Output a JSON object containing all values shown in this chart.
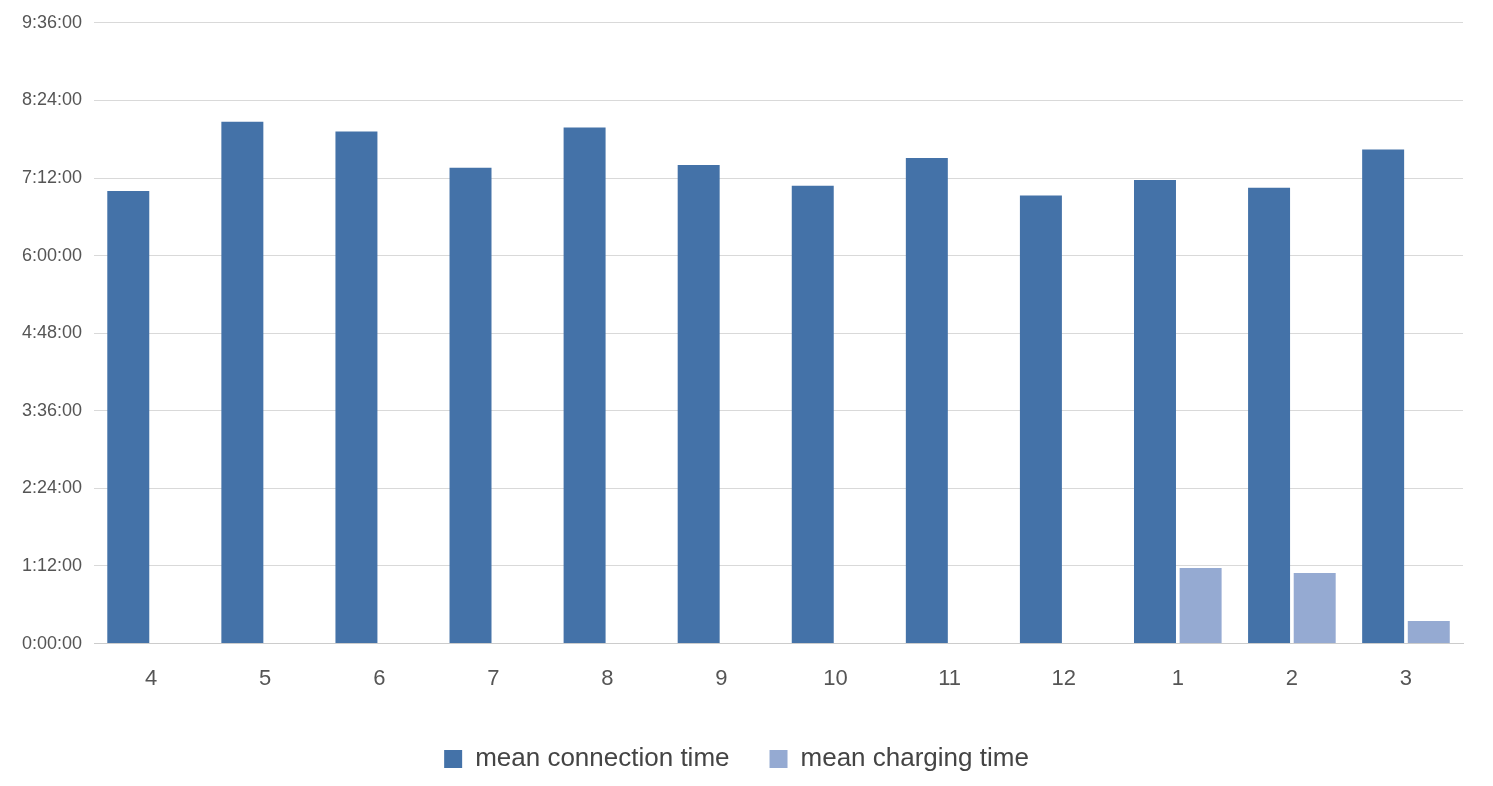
{
  "chart_data": {
    "type": "bar",
    "categories": [
      "4",
      "5",
      "6",
      "7",
      "8",
      "9",
      "10",
      "11",
      "12",
      "1",
      "2",
      "3"
    ],
    "series": [
      {
        "name": "mean connection time",
        "color": "#4472a8",
        "values": [
          7.0,
          8.07,
          7.92,
          7.36,
          7.98,
          7.4,
          7.08,
          7.51,
          6.93,
          7.17,
          7.05,
          7.64
        ]
      },
      {
        "name": "mean charging time",
        "color": "#95aad2",
        "values": [
          null,
          null,
          null,
          null,
          null,
          null,
          null,
          null,
          null,
          1.17,
          1.09,
          0.35
        ]
      }
    ],
    "ylim": [
      0,
      9.6
    ],
    "yticks": [
      {
        "value": 0,
        "label": "0:00:00"
      },
      {
        "value": 1.2,
        "label": "1:12:00"
      },
      {
        "value": 2.4,
        "label": "2:24:00"
      },
      {
        "value": 3.6,
        "label": "3:36:00"
      },
      {
        "value": 4.8,
        "label": "4:48:00"
      },
      {
        "value": 6,
        "label": "6:00:00"
      },
      {
        "value": 7.2,
        "label": "7:12:00"
      },
      {
        "value": 8.4,
        "label": "8:24:00"
      },
      {
        "value": 9.6,
        "label": "9:36:00"
      }
    ],
    "grid": "y",
    "legend": "bottom"
  }
}
